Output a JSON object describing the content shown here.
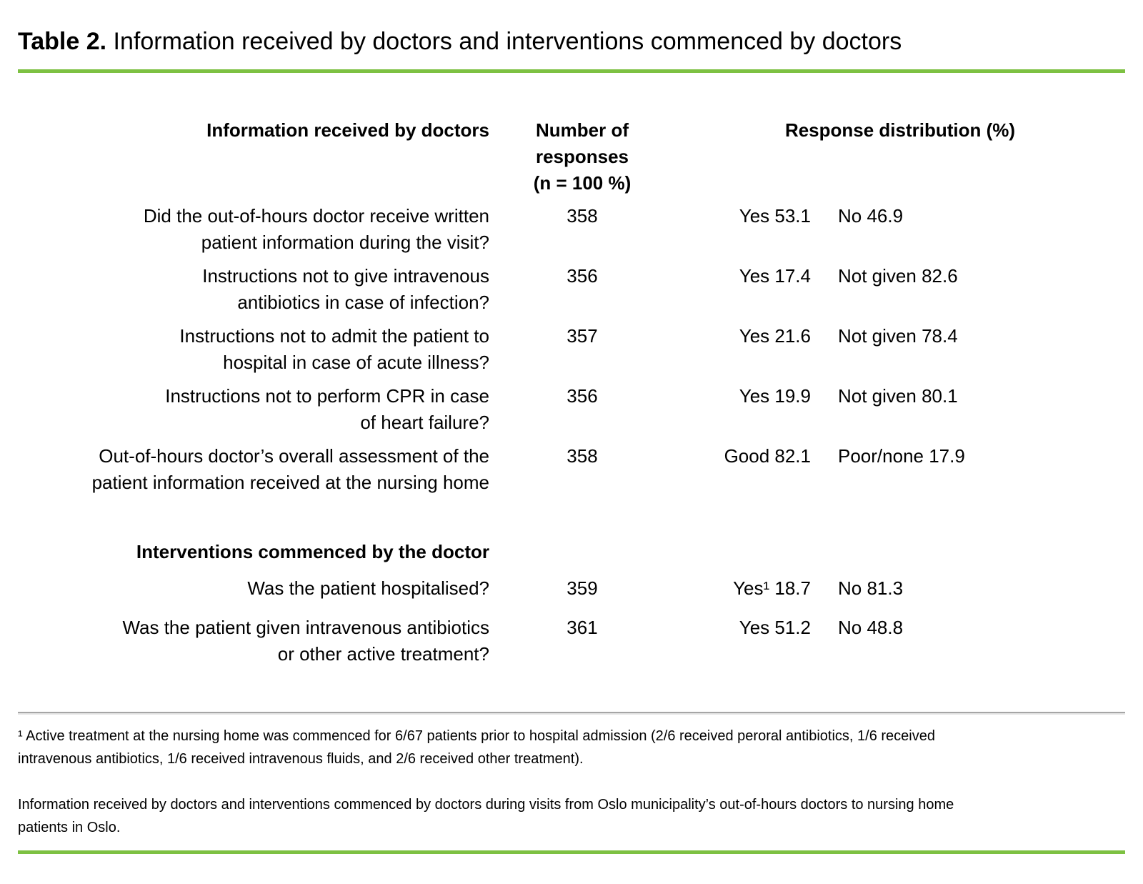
{
  "colors": {
    "accent_green": "#7dc142",
    "rule_gray": "#a6a6a6"
  },
  "title": {
    "label": "Table 2.",
    "text": "Information received by doctors and interventions commenced by doctors"
  },
  "table": {
    "header": {
      "col_questions": "Information received by doctors",
      "col_n_lines": [
        "Number of",
        "responses",
        "(n = 100 %)"
      ],
      "col_distribution": "Response distribution (%)"
    },
    "rows": [
      {
        "question_lines": [
          "Did the out-of-hours doctor receive written",
          "patient information during the visit?"
        ],
        "n": "358",
        "response1": "Yes 53.1",
        "response2": "No 46.9"
      },
      {
        "question_lines": [
          "Instructions not to give intravenous",
          "antibiotics in case of infection?"
        ],
        "n": "356",
        "response1": "Yes 17.4",
        "response2": "Not given 82.6"
      },
      {
        "question_lines": [
          "Instructions not to admit the patient to",
          "hospital in case of acute illness?"
        ],
        "n": "357",
        "response1": "Yes 21.6",
        "response2": "Not given 78.4"
      },
      {
        "question_lines": [
          "Instructions not to perform CPR in case",
          "of heart failure?"
        ],
        "n": "356",
        "response1": "Yes 19.9",
        "response2": "Not given 80.1"
      },
      {
        "question_lines": [
          "Out-of-hours doctor’s overall assessment of the",
          "patient information received at the nursing home"
        ],
        "n": "358",
        "response1": "Good 82.1",
        "response2": "Poor/none 17.9"
      }
    ],
    "section_header": "Interventions commenced by the doctor",
    "section_rows": [
      {
        "question_lines": [
          "Was the patient hospitalised?"
        ],
        "n": "359",
        "response1": "Yes¹ 18.7",
        "response2": "No 81.3"
      },
      {
        "question_lines": [
          "Was the patient given intravenous antibiotics",
          "or other active treatment?"
        ],
        "n": "361",
        "response1": "Yes 51.2",
        "response2": "No 48.8"
      }
    ]
  },
  "footnote": {
    "lines": [
      "¹ Active treatment at the nursing home was commenced for 6/67 patients prior to hospital admission (2/6 received peroral antibiotics, 1/6 received",
      "intravenous antibiotics, 1/6 received intravenous fluids, and 2/6 received other treatment)."
    ]
  },
  "caption": {
    "lines": [
      "Information received by doctors and interventions commenced by doctors during visits from Oslo municipality’s out-of-hours doctors to nursing home",
      "patients in Oslo."
    ]
  }
}
